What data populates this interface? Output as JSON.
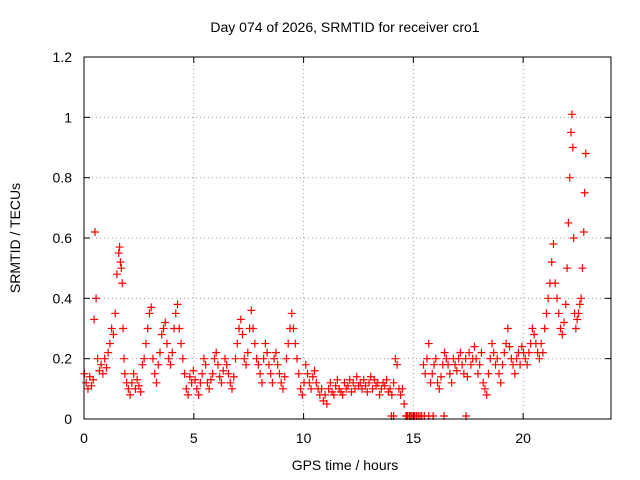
{
  "chart_data": {
    "type": "scatter",
    "title": "Day 074 of 2026, SRMTID for receiver cro1",
    "xlabel": "GPS time / hours",
    "ylabel": "SRMTID / TECUs",
    "xlim": [
      0,
      24
    ],
    "ylim": [
      0,
      1.2
    ],
    "xticks": [
      0,
      5,
      10,
      15,
      20
    ],
    "xtick_labels": [
      "0",
      "5",
      "10",
      "15",
      "20"
    ],
    "yticks": [
      0,
      0.2,
      0.4,
      0.6,
      0.8,
      1.0,
      1.2
    ],
    "ytick_labels": [
      "0",
      "0.2",
      "0.4",
      "0.6",
      "0.8",
      "1",
      "1.2"
    ],
    "grid": true,
    "marker": "+",
    "color": "#ff0000",
    "series": [
      {
        "name": "SRMTID",
        "x": [
          0.02,
          0.1,
          0.18,
          0.26,
          0.34,
          0.42,
          0.46,
          0.5,
          0.55,
          0.62,
          0.7,
          0.78,
          0.86,
          0.94,
          1.02,
          1.1,
          1.18,
          1.26,
          1.34,
          1.42,
          1.5,
          1.58,
          1.62,
          1.66,
          1.7,
          1.74,
          1.78,
          1.82,
          1.86,
          1.94,
          2.02,
          2.1,
          2.18,
          2.26,
          2.34,
          2.42,
          2.5,
          2.58,
          2.66,
          2.74,
          2.82,
          2.9,
          2.98,
          3.06,
          3.14,
          3.22,
          3.3,
          3.38,
          3.46,
          3.54,
          3.62,
          3.7,
          3.78,
          3.86,
          3.94,
          4.02,
          4.1,
          4.18,
          4.26,
          4.34,
          4.42,
          4.5,
          4.58,
          4.66,
          4.74,
          4.82,
          4.9,
          4.98,
          5.06,
          5.14,
          5.22,
          5.3,
          5.38,
          5.46,
          5.54,
          5.62,
          5.7,
          5.78,
          5.86,
          5.94,
          6.02,
          6.1,
          6.18,
          6.26,
          6.34,
          6.42,
          6.5,
          6.58,
          6.66,
          6.74,
          6.82,
          6.9,
          6.98,
          7.06,
          7.14,
          7.22,
          7.3,
          7.38,
          7.46,
          7.54,
          7.62,
          7.7,
          7.78,
          7.86,
          7.94,
          8.02,
          8.1,
          8.18,
          8.26,
          8.34,
          8.42,
          8.5,
          8.58,
          8.66,
          8.74,
          8.82,
          8.9,
          8.98,
          9.06,
          9.14,
          9.22,
          9.3,
          9.38,
          9.46,
          9.54,
          9.62,
          9.7,
          9.78,
          9.86,
          9.94,
          10.02,
          10.1,
          10.18,
          10.26,
          10.34,
          10.42,
          10.5,
          10.58,
          10.66,
          10.74,
          10.82,
          10.9,
          10.98,
          11.06,
          11.14,
          11.22,
          11.3,
          11.38,
          11.46,
          11.54,
          11.62,
          11.7,
          11.78,
          11.86,
          11.94,
          12.02,
          12.1,
          12.18,
          12.26,
          12.34,
          12.42,
          12.5,
          12.58,
          12.66,
          12.74,
          12.82,
          12.9,
          12.98,
          13.06,
          13.14,
          13.22,
          13.3,
          13.38,
          13.46,
          13.54,
          13.62,
          13.7,
          13.78,
          13.86,
          13.94,
          14.02,
          14.1,
          14.18,
          14.26,
          14.34,
          14.42,
          14.5,
          14.58,
          14.66,
          14.74,
          14.82,
          14.9,
          14.98,
          15.06,
          15.14,
          15.22,
          15.3,
          15.38,
          15.46,
          15.54,
          15.62,
          15.7,
          15.78,
          15.86,
          15.94,
          16.02,
          16.1,
          16.18,
          16.26,
          16.34,
          16.42,
          16.5,
          16.58,
          16.66,
          16.74,
          16.82,
          16.9,
          16.98,
          17.06,
          17.14,
          17.22,
          17.3,
          17.38,
          17.46,
          17.54,
          17.62,
          17.7,
          17.78,
          17.86,
          17.94,
          18.02,
          18.1,
          18.18,
          18.26,
          18.34,
          18.42,
          18.5,
          18.58,
          18.66,
          18.74,
          18.82,
          18.9,
          18.98,
          19.06,
          19.14,
          19.22,
          19.3,
          19.38,
          19.46,
          19.54,
          19.62,
          19.7,
          19.78,
          19.86,
          19.94,
          20.02,
          20.1,
          20.18,
          20.26,
          20.34,
          20.42,
          20.5,
          20.58,
          20.66,
          20.74,
          20.82,
          20.9,
          20.98,
          21.06,
          21.14,
          21.22,
          21.3,
          21.38,
          21.46,
          21.54,
          21.62,
          21.7,
          21.78,
          21.86,
          21.94,
          22.0,
          22.06,
          22.12,
          22.18,
          22.22,
          22.26,
          22.3,
          22.34,
          22.4,
          22.46,
          22.52,
          22.58,
          22.64,
          22.7,
          22.76,
          22.8,
          22.85,
          14.0,
          14.1,
          14.7,
          14.85,
          15.0,
          15.5,
          15.7,
          15.9,
          16.4,
          17.4
        ],
        "y": [
          0.15,
          0.12,
          0.1,
          0.14,
          0.11,
          0.13,
          0.33,
          0.62,
          0.4,
          0.2,
          0.16,
          0.18,
          0.15,
          0.2,
          0.17,
          0.22,
          0.25,
          0.3,
          0.28,
          0.35,
          0.48,
          0.55,
          0.57,
          0.52,
          0.5,
          0.45,
          0.3,
          0.2,
          0.15,
          0.12,
          0.1,
          0.08,
          0.12,
          0.15,
          0.1,
          0.13,
          0.11,
          0.09,
          0.18,
          0.2,
          0.25,
          0.3,
          0.35,
          0.37,
          0.2,
          0.15,
          0.12,
          0.18,
          0.22,
          0.28,
          0.3,
          0.32,
          0.25,
          0.2,
          0.18,
          0.22,
          0.3,
          0.35,
          0.38,
          0.3,
          0.25,
          0.2,
          0.15,
          0.1,
          0.08,
          0.14,
          0.12,
          0.16,
          0.13,
          0.1,
          0.08,
          0.12,
          0.15,
          0.2,
          0.18,
          0.12,
          0.1,
          0.13,
          0.15,
          0.2,
          0.22,
          0.18,
          0.14,
          0.12,
          0.16,
          0.2,
          0.18,
          0.15,
          0.12,
          0.1,
          0.14,
          0.2,
          0.25,
          0.3,
          0.33,
          0.28,
          0.2,
          0.18,
          0.22,
          0.3,
          0.36,
          0.3,
          0.25,
          0.2,
          0.18,
          0.15,
          0.12,
          0.2,
          0.25,
          0.22,
          0.18,
          0.15,
          0.12,
          0.2,
          0.22,
          0.18,
          0.15,
          0.12,
          0.1,
          0.14,
          0.2,
          0.25,
          0.3,
          0.35,
          0.3,
          0.25,
          0.2,
          0.15,
          0.1,
          0.08,
          0.12,
          0.18,
          0.15,
          0.12,
          0.1,
          0.14,
          0.16,
          0.12,
          0.1,
          0.08,
          0.1,
          0.06,
          0.08,
          0.05,
          0.1,
          0.12,
          0.09,
          0.08,
          0.11,
          0.13,
          0.1,
          0.09,
          0.08,
          0.12,
          0.1,
          0.11,
          0.13,
          0.09,
          0.12,
          0.1,
          0.14,
          0.11,
          0.12,
          0.1,
          0.13,
          0.11,
          0.09,
          0.12,
          0.14,
          0.1,
          0.13,
          0.11,
          0.12,
          0.08,
          0.1,
          0.12,
          0.11,
          0.13,
          0.09,
          0.1,
          0.08,
          0.12,
          0.2,
          0.18,
          0.1,
          0.08,
          0.1,
          0.05,
          0.01,
          0.01,
          0.01,
          0.01,
          0.01,
          0.01,
          0.01,
          0.01,
          0.01,
          0.01,
          0.18,
          0.15,
          0.2,
          0.25,
          0.12,
          0.15,
          0.18,
          0.2,
          0.12,
          0.1,
          0.14,
          0.18,
          0.22,
          0.2,
          0.18,
          0.15,
          0.12,
          0.2,
          0.18,
          0.16,
          0.2,
          0.22,
          0.18,
          0.15,
          0.2,
          0.14,
          0.22,
          0.18,
          0.2,
          0.24,
          0.2,
          0.15,
          0.18,
          0.22,
          0.12,
          0.1,
          0.08,
          0.15,
          0.2,
          0.25,
          0.22,
          0.18,
          0.2,
          0.15,
          0.12,
          0.18,
          0.22,
          0.25,
          0.3,
          0.24,
          0.2,
          0.18,
          0.15,
          0.2,
          0.22,
          0.18,
          0.24,
          0.22,
          0.2,
          0.18,
          0.22,
          0.25,
          0.3,
          0.28,
          0.25,
          0.22,
          0.2,
          0.25,
          0.22,
          0.3,
          0.35,
          0.4,
          0.45,
          0.52,
          0.58,
          0.45,
          0.4,
          0.35,
          0.3,
          0.28,
          0.32,
          0.38,
          0.5,
          0.65,
          0.8,
          0.95,
          1.01,
          0.9,
          0.6,
          0.35,
          0.3,
          0.33,
          0.35,
          0.38,
          0.4,
          0.5,
          0.62,
          0.75,
          0.88,
          0.01,
          0.01,
          0.01,
          0.01,
          0.01,
          0.01,
          0.01,
          0.01,
          0.01,
          0.01
        ]
      }
    ]
  }
}
